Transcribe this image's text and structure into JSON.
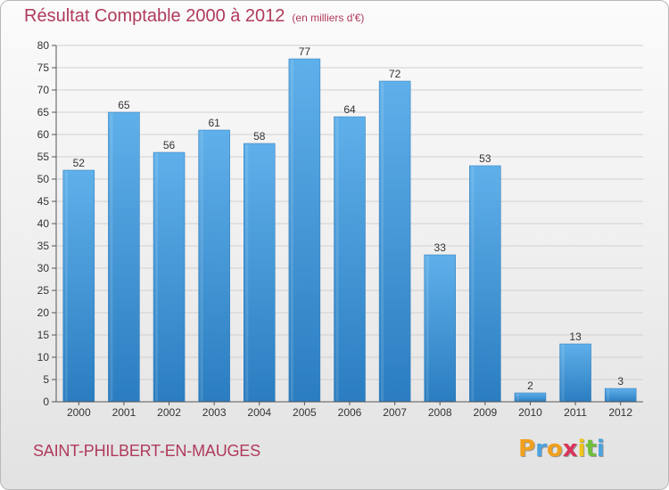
{
  "header": {
    "title": "Résultat Comptable 2000 à 2012",
    "subtitle": "(en milliers d'€)"
  },
  "footer": {
    "commune": "SAINT-PHILBERT-EN-MAUGES",
    "logo_letters": [
      "P",
      "r",
      "o",
      "x",
      "i",
      "t",
      "i"
    ],
    "logo_colors": [
      "#f0a01e",
      "#4aa3df",
      "#f0a01e",
      "#d9345a",
      "#f0c419",
      "#6fbf3b",
      "#4aa3df"
    ]
  },
  "colors": {
    "bar_light": "#5fb0ea",
    "bar_dark": "#2a7dc0",
    "grid": "#d0d0d0",
    "axis": "#555555"
  },
  "chart_data": {
    "type": "bar",
    "title": "Résultat Comptable 2000 à 2012",
    "subtitle": "(en milliers d'€)",
    "xlabel": "",
    "ylabel": "",
    "categories": [
      "2000",
      "2001",
      "2002",
      "2003",
      "2004",
      "2005",
      "2006",
      "2007",
      "2008",
      "2009",
      "2010",
      "2011",
      "2012"
    ],
    "values": [
      52,
      65,
      56,
      61,
      58,
      77,
      64,
      72,
      33,
      53,
      2,
      13,
      3
    ],
    "ylim": [
      0,
      80
    ],
    "yticks": [
      0,
      5,
      10,
      15,
      20,
      25,
      30,
      35,
      40,
      45,
      50,
      55,
      60,
      65,
      70,
      75,
      80
    ],
    "grid": true,
    "legend": "none"
  }
}
